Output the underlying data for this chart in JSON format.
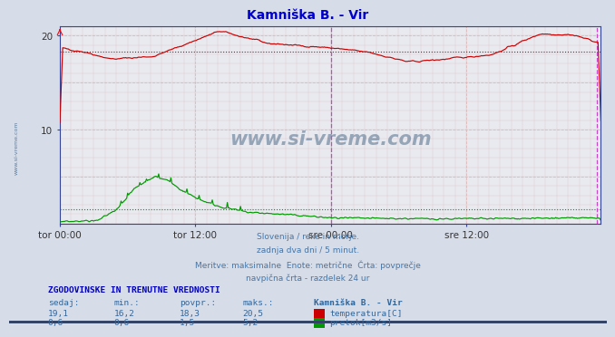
{
  "title": "Kamniška B. - Vir",
  "title_color": "#0000cc",
  "bg_color": "#d6dce8",
  "plot_bg_color": "#e8eaf0",
  "xlim": [
    0,
    575
  ],
  "ylim": [
    0,
    21
  ],
  "yticks": [
    10,
    20
  ],
  "xtick_labels": [
    "tor 00:00",
    "tor 12:00",
    "sre 00:00",
    "sre 12:00"
  ],
  "xtick_positions": [
    0,
    144,
    288,
    432
  ],
  "vline_midnight": 288,
  "vline_end": 571,
  "vline_color": "#cc44cc",
  "hline_temp": 18.3,
  "hline_flow": 1.5,
  "hline_temp_color": "#cc0000",
  "hline_flow_color": "#009900",
  "temp_color": "#cc0000",
  "flow_color": "#009900",
  "axis_color": "#334499",
  "grid_minor_color": "#e0c8c8",
  "grid_major_color": "#ddb8b8",
  "watermark": "www.si-vreme.com",
  "watermark_color": "#335577",
  "sidebar_text": "www.si-vreme.com",
  "footer_lines": [
    "Slovenija / reke in morje.",
    "zadnja dva dni / 5 minut.",
    "Meritve: maksimalne  Enote: metrične  Črta: povprečje",
    "navpična črta - razdelek 24 ur"
  ],
  "footer_color": "#4477aa",
  "table_header": "ZGODOVINSKE IN TRENUTNE VREDNOSTI",
  "table_header_color": "#0000bb",
  "col_headers": [
    "sedaj:",
    "min.:",
    "povpr.:",
    "maks.:",
    "Kamniška B. - Vir"
  ],
  "row1_vals": [
    "19,1",
    "16,2",
    "18,3",
    "20,5"
  ],
  "row1_label": "temperatura[C]",
  "row2_vals": [
    "0,6",
    "0,6",
    "1,5",
    "5,2"
  ],
  "row2_label": "pretok[m3/s]",
  "table_color": "#336699",
  "legend_temp_color": "#cc0000",
  "legend_flow_color": "#009900",
  "n_points": 576
}
